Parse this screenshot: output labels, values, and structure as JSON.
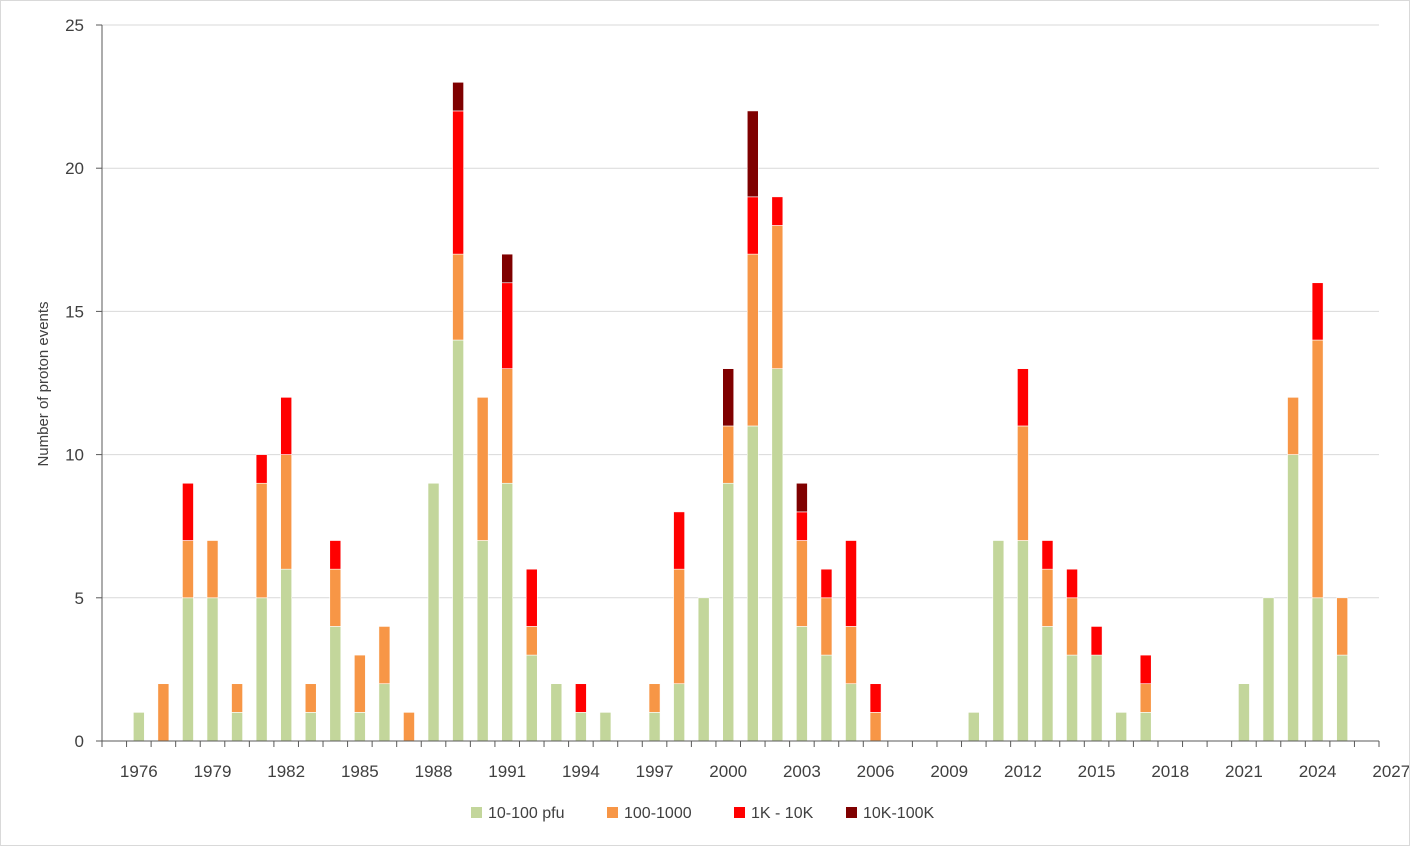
{
  "chart_data": {
    "type": "bar",
    "stacked": true,
    "title": "",
    "xlabel": "",
    "ylabel": "Number of proton events",
    "ylim": [
      0,
      25
    ],
    "yticks": [
      0,
      5,
      10,
      15,
      20,
      25
    ],
    "xlim": [
      1975,
      2027
    ],
    "xticks": [
      1976,
      1979,
      1982,
      1985,
      1988,
      1991,
      1994,
      1997,
      2000,
      2003,
      2006,
      2009,
      2012,
      2015,
      2018,
      2021,
      2024,
      2027
    ],
    "grid": "horizontal",
    "legend_position": "bottom",
    "categories": [
      1976,
      1977,
      1978,
      1979,
      1980,
      1981,
      1982,
      1983,
      1984,
      1985,
      1986,
      1987,
      1988,
      1989,
      1990,
      1991,
      1992,
      1993,
      1994,
      1995,
      1996,
      1997,
      1998,
      1999,
      2000,
      2001,
      2002,
      2003,
      2004,
      2005,
      2006,
      2007,
      2008,
      2009,
      2010,
      2011,
      2012,
      2013,
      2014,
      2015,
      2016,
      2017,
      2018,
      2019,
      2020,
      2021,
      2022,
      2023,
      2024,
      2025
    ],
    "series": [
      {
        "name": "10-100 pfu",
        "color": "#c3d69b",
        "values": [
          1,
          0,
          5,
          5,
          1,
          5,
          6,
          1,
          4,
          1,
          2,
          0,
          9,
          14,
          7,
          9,
          3,
          2,
          1,
          1,
          0,
          1,
          2,
          5,
          9,
          11,
          13,
          4,
          3,
          2,
          0,
          0,
          0,
          0,
          1,
          7,
          7,
          4,
          3,
          3,
          1,
          1,
          0,
          0,
          0,
          2,
          5,
          10,
          5,
          3
        ]
      },
      {
        "name": "100-1000",
        "color": "#f79646",
        "values": [
          0,
          2,
          2,
          2,
          1,
          4,
          4,
          1,
          2,
          2,
          2,
          1,
          0,
          3,
          5,
          4,
          1,
          0,
          0,
          0,
          0,
          1,
          4,
          0,
          2,
          6,
          5,
          3,
          2,
          2,
          1,
          0,
          0,
          0,
          0,
          0,
          4,
          2,
          2,
          0,
          0,
          1,
          0,
          0,
          0,
          0,
          0,
          2,
          9,
          2
        ]
      },
      {
        "name": "1K - 10K",
        "color": "#ff0000",
        "values": [
          0,
          0,
          2,
          0,
          0,
          1,
          2,
          0,
          1,
          0,
          0,
          0,
          0,
          5,
          0,
          3,
          2,
          0,
          1,
          0,
          0,
          0,
          2,
          0,
          0,
          2,
          1,
          1,
          1,
          3,
          1,
          0,
          0,
          0,
          0,
          0,
          2,
          1,
          1,
          1,
          0,
          1,
          0,
          0,
          0,
          0,
          0,
          0,
          2,
          0
        ]
      },
      {
        "name": "10K-100K",
        "color": "#7f0000",
        "values": [
          0,
          0,
          0,
          0,
          0,
          0,
          0,
          0,
          0,
          0,
          0,
          0,
          0,
          1,
          0,
          1,
          0,
          0,
          0,
          0,
          0,
          0,
          0,
          0,
          2,
          3,
          0,
          1,
          0,
          0,
          0,
          0,
          0,
          0,
          0,
          0,
          0,
          0,
          0,
          0,
          0,
          0,
          0,
          0,
          0,
          0,
          0,
          0,
          0,
          0
        ]
      }
    ]
  }
}
